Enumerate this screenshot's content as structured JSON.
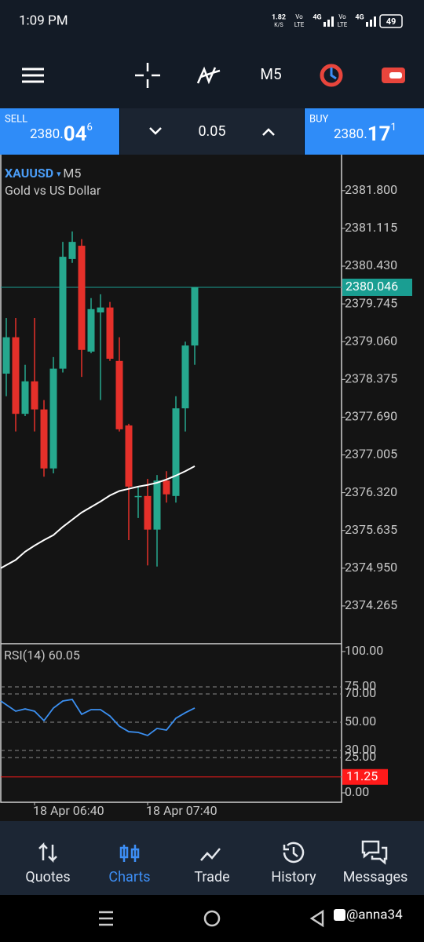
{
  "status_bar": {
    "time": "1:09 PM",
    "speed": "1.82",
    "speed_unit": "K/S",
    "vo1": "Vo",
    "lte1": "LTE",
    "net1": "4G",
    "vo2": "Vo",
    "lte2": "LTE",
    "net2": "4G",
    "battery": "49"
  },
  "toolbar": {
    "timeframe": "M5"
  },
  "trade_panel": {
    "sell": {
      "label": "SELL",
      "price_main": "2380.",
      "price_big": "04",
      "price_sup": "6"
    },
    "volume": "0.05",
    "buy": {
      "label": "BUY",
      "price_main": "2380.",
      "price_big": "17",
      "price_sup": "1"
    }
  },
  "chart": {
    "symbol": "XAUUSD",
    "timeframe": "M5",
    "description": "Gold vs US Dollar",
    "ylim": [
      2373.58,
      2382.41
    ],
    "yticks": [
      {
        "value": 2381.8,
        "label": "2381.800"
      },
      {
        "value": 2381.115,
        "label": "2381.115"
      },
      {
        "value": 2380.43,
        "label": "2380.430"
      },
      {
        "value": 2379.745,
        "label": "2379.745"
      },
      {
        "value": 2379.06,
        "label": "2379.060"
      },
      {
        "value": 2378.375,
        "label": "2378.375"
      },
      {
        "value": 2377.69,
        "label": "2377.690"
      },
      {
        "value": 2377.005,
        "label": "2377.005"
      },
      {
        "value": 2376.32,
        "label": "2376.320"
      },
      {
        "value": 2375.635,
        "label": "2375.635"
      },
      {
        "value": 2374.95,
        "label": "2374.950"
      },
      {
        "value": 2374.265,
        "label": "2374.265"
      }
    ],
    "current_price": {
      "value": 2380.046,
      "label": "2380.046"
    },
    "colors": {
      "up": "#26a88e",
      "down": "#e5302a",
      "ma": "#ffffff",
      "current": "#1a9e92"
    },
    "candles": [
      {
        "open": 2378.48,
        "high": 2379.49,
        "low": 2378.07,
        "close": 2379.14
      },
      {
        "open": 2379.14,
        "high": 2379.49,
        "low": 2377.43,
        "close": 2377.75
      },
      {
        "open": 2377.75,
        "high": 2378.64,
        "low": 2377.71,
        "close": 2378.34
      },
      {
        "open": 2378.34,
        "high": 2379.49,
        "low": 2377.43,
        "close": 2377.83
      },
      {
        "open": 2377.83,
        "high": 2378.0,
        "low": 2376.61,
        "close": 2376.76
      },
      {
        "open": 2376.76,
        "high": 2378.78,
        "low": 2376.67,
        "close": 2378.57
      },
      {
        "open": 2378.57,
        "high": 2380.87,
        "low": 2378.5,
        "close": 2380.6
      },
      {
        "open": 2380.56,
        "high": 2381.06,
        "low": 2380.49,
        "close": 2380.87
      },
      {
        "open": 2380.8,
        "high": 2380.92,
        "low": 2378.42,
        "close": 2378.91
      },
      {
        "open": 2378.88,
        "high": 2379.85,
        "low": 2378.85,
        "close": 2379.65
      },
      {
        "open": 2379.59,
        "high": 2379.92,
        "low": 2378.0,
        "close": 2379.68
      },
      {
        "open": 2379.68,
        "high": 2379.78,
        "low": 2378.71,
        "close": 2378.75
      },
      {
        "open": 2378.71,
        "high": 2379.14,
        "low": 2377.43,
        "close": 2377.47
      },
      {
        "open": 2377.54,
        "high": 2377.57,
        "low": 2375.46,
        "close": 2376.43
      },
      {
        "open": 2376.24,
        "high": 2376.43,
        "low": 2375.86,
        "close": 2376.26
      },
      {
        "open": 2376.26,
        "high": 2376.57,
        "low": 2375.0,
        "close": 2375.65
      },
      {
        "open": 2375.65,
        "high": 2376.64,
        "low": 2374.98,
        "close": 2376.54
      },
      {
        "open": 2376.54,
        "high": 2376.71,
        "low": 2376.14,
        "close": 2376.29
      },
      {
        "open": 2376.26,
        "high": 2378.07,
        "low": 2376.14,
        "close": 2377.85
      },
      {
        "open": 2377.85,
        "high": 2379.06,
        "low": 2377.43,
        "close": 2378.99
      },
      {
        "open": 2378.99,
        "high": 2380.05,
        "low": 2378.64,
        "close": 2380.046
      }
    ],
    "ma": [
      2374.95,
      2375.1,
      2375.25,
      2375.36,
      2375.46,
      2375.55,
      2375.7,
      2375.83,
      2375.96,
      2376.06,
      2376.16,
      2376.27,
      2376.35,
      2376.39,
      2376.43,
      2376.46,
      2376.5,
      2376.56,
      2376.63,
      2376.71,
      2376.8
    ],
    "x_labels": [
      null,
      null,
      null,
      "18 Apr 06:40",
      null,
      null,
      null,
      null,
      null,
      null,
      null,
      null,
      null,
      null,
      null,
      "18 Apr 07:40",
      null,
      null,
      null,
      null,
      null
    ],
    "rsi": {
      "label": "RSI(14) 60.05",
      "ylim": [
        0,
        100
      ],
      "yticks": [
        {
          "value": 100,
          "label": "100.00"
        },
        {
          "value": 75,
          "label": "75.00"
        },
        {
          "value": 70,
          "label": "70.00"
        },
        {
          "value": 50,
          "label": "50.00"
        },
        {
          "value": 30,
          "label": "30.00"
        },
        {
          "value": 25,
          "label": "25.00"
        },
        {
          "value": 0,
          "label": "0.00"
        }
      ],
      "alert": {
        "value": 11.25,
        "label": "11.25",
        "color": "#ff1a1a"
      },
      "color": "#3b8ff0",
      "values": [
        65,
        57.8,
        59.4,
        57.8,
        51.1,
        60,
        65,
        66.1,
        55.6,
        58.9,
        58.9,
        54.4,
        47.2,
        43.3,
        42.8,
        40.6,
        45.6,
        44.4,
        52.8,
        56.7,
        60.05
      ]
    }
  },
  "nav": [
    {
      "label": "Quotes"
    },
    {
      "label": "Charts",
      "active": true
    },
    {
      "label": "Trade"
    },
    {
      "label": "History"
    },
    {
      "label": "Messages"
    }
  ],
  "watermark": "@anna34"
}
